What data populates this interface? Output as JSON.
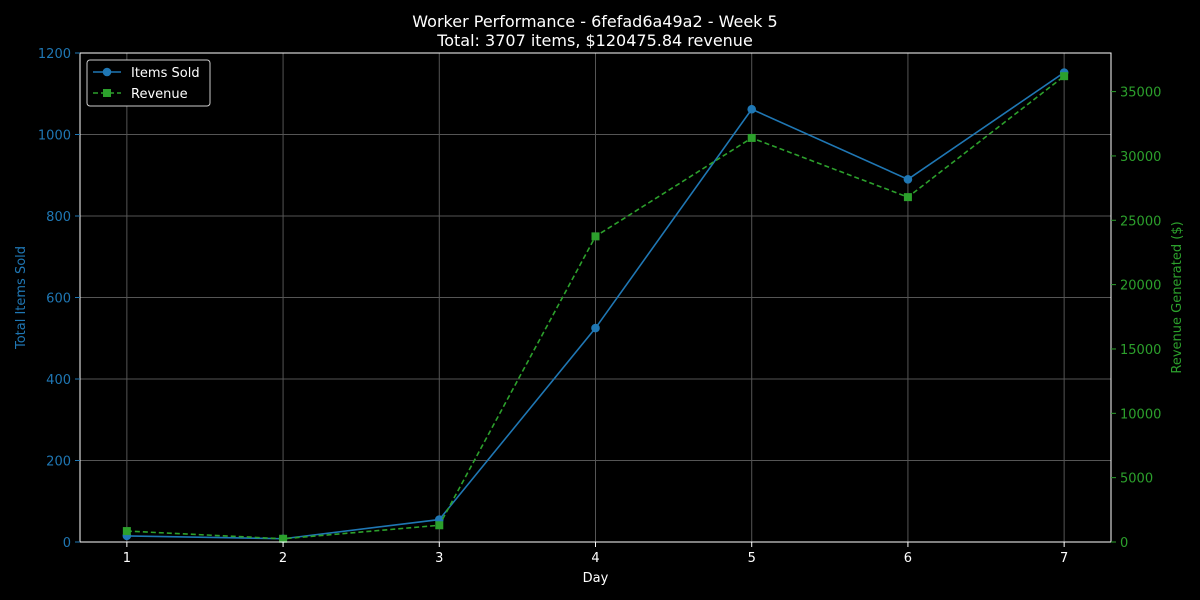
{
  "chart_data": {
    "type": "line",
    "title": "Worker Performance - 6fefad6a49a2 - Week 5",
    "subtitle": "Total: 3707 items, $120475.84 revenue",
    "xlabel": "Day",
    "ylabel_left": "Total Items Sold",
    "ylabel_right": "Revenue Generated ($)",
    "x": [
      1,
      2,
      3,
      4,
      5,
      6,
      7
    ],
    "xlim": [
      0.7,
      7.3
    ],
    "ylim_left": [
      0,
      1200
    ],
    "ylim_right": [
      0,
      38000
    ],
    "x_ticks": [
      "1",
      "2",
      "3",
      "4",
      "5",
      "6",
      "7"
    ],
    "y_ticks_left": [
      "0",
      "200",
      "400",
      "600",
      "800",
      "1000",
      "1200"
    ],
    "y_ticks_right": [
      "0",
      "5000",
      "10000",
      "15000",
      "20000",
      "25000",
      "30000",
      "35000"
    ],
    "grid": true,
    "legend": "top-left",
    "series": [
      {
        "name": "Items Sold",
        "axis": "left",
        "color": "#1f77b4",
        "style": "solid",
        "marker": "circle",
        "values": [
          15,
          8,
          55,
          525,
          1062,
          890,
          1152
        ]
      },
      {
        "name": "Revenue",
        "axis": "right",
        "color": "#2ca02c",
        "style": "dashed",
        "marker": "square",
        "values": [
          850,
          250,
          1300,
          23750,
          31400,
          26800,
          36200
        ]
      }
    ],
    "colors": {
      "background": "#000000",
      "text": "#ffffff",
      "grid": "#555555",
      "left_axis": "#1f77b4",
      "right_axis": "#2ca02c"
    }
  }
}
